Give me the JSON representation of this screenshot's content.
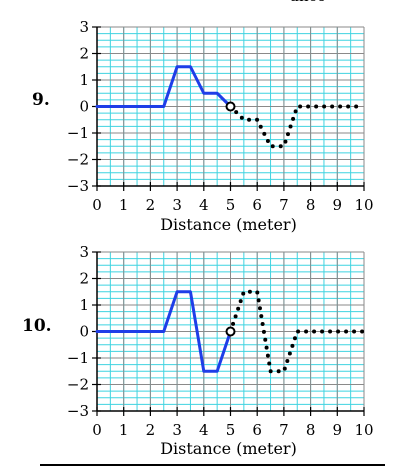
{
  "header_fragment": "ance (meter)",
  "problems": [
    {
      "number": "9."
    },
    {
      "number": "10."
    }
  ],
  "chart_data": [
    {
      "type": "line",
      "title": "",
      "xlabel": "Distance (meter)",
      "ylabel": "",
      "xlim": [
        0,
        10
      ],
      "ylim": [
        -3,
        3
      ],
      "x_ticks": [
        "0",
        "1",
        "2",
        "3",
        "4",
        "5",
        "6",
        "7",
        "8",
        "9",
        "10"
      ],
      "y_ticks": [
        "3",
        "2",
        "1",
        "0",
        "−1",
        "−2",
        "−3"
      ],
      "grid": true,
      "series": [
        {
          "style": "solid",
          "color": "#1f3ee8",
          "x": [
            0,
            2.5,
            3,
            3.5,
            4,
            4.5,
            5
          ],
          "y": [
            0,
            0,
            1.5,
            1.5,
            0.5,
            0.5,
            0
          ]
        },
        {
          "style": "dotted",
          "color": "#000000",
          "x": [
            5,
            5.5,
            6,
            6.5,
            7,
            7.5,
            8,
            9,
            10
          ],
          "y": [
            0,
            -0.5,
            -0.5,
            -1.5,
            -1.5,
            0,
            0,
            0,
            0
          ]
        }
      ],
      "marker": {
        "x": 5,
        "y": 0,
        "shape": "open-circle"
      }
    },
    {
      "type": "line",
      "title": "",
      "xlabel": "Distance (meter)",
      "ylabel": "",
      "xlim": [
        0,
        10
      ],
      "ylim": [
        -3,
        3
      ],
      "x_ticks": [
        "0",
        "1",
        "2",
        "3",
        "4",
        "5",
        "6",
        "7",
        "8",
        "9",
        "10"
      ],
      "y_ticks": [
        "3",
        "2",
        "1",
        "0",
        "−1",
        "−2",
        "−3"
      ],
      "grid": true,
      "series": [
        {
          "style": "solid",
          "color": "#1f3ee8",
          "x": [
            0,
            2.5,
            3,
            3.5,
            4,
            4.5,
            5
          ],
          "y": [
            0,
            0,
            1.5,
            1.5,
            -1.5,
            -1.5,
            0
          ]
        },
        {
          "style": "dotted",
          "color": "#000000",
          "x": [
            5,
            5.5,
            6,
            6.5,
            7,
            7.5,
            8,
            9,
            10
          ],
          "y": [
            0,
            1.5,
            1.5,
            -1.5,
            -1.5,
            0,
            0,
            0,
            0
          ]
        }
      ],
      "marker": {
        "x": 5,
        "y": 0,
        "shape": "open-circle"
      }
    }
  ]
}
